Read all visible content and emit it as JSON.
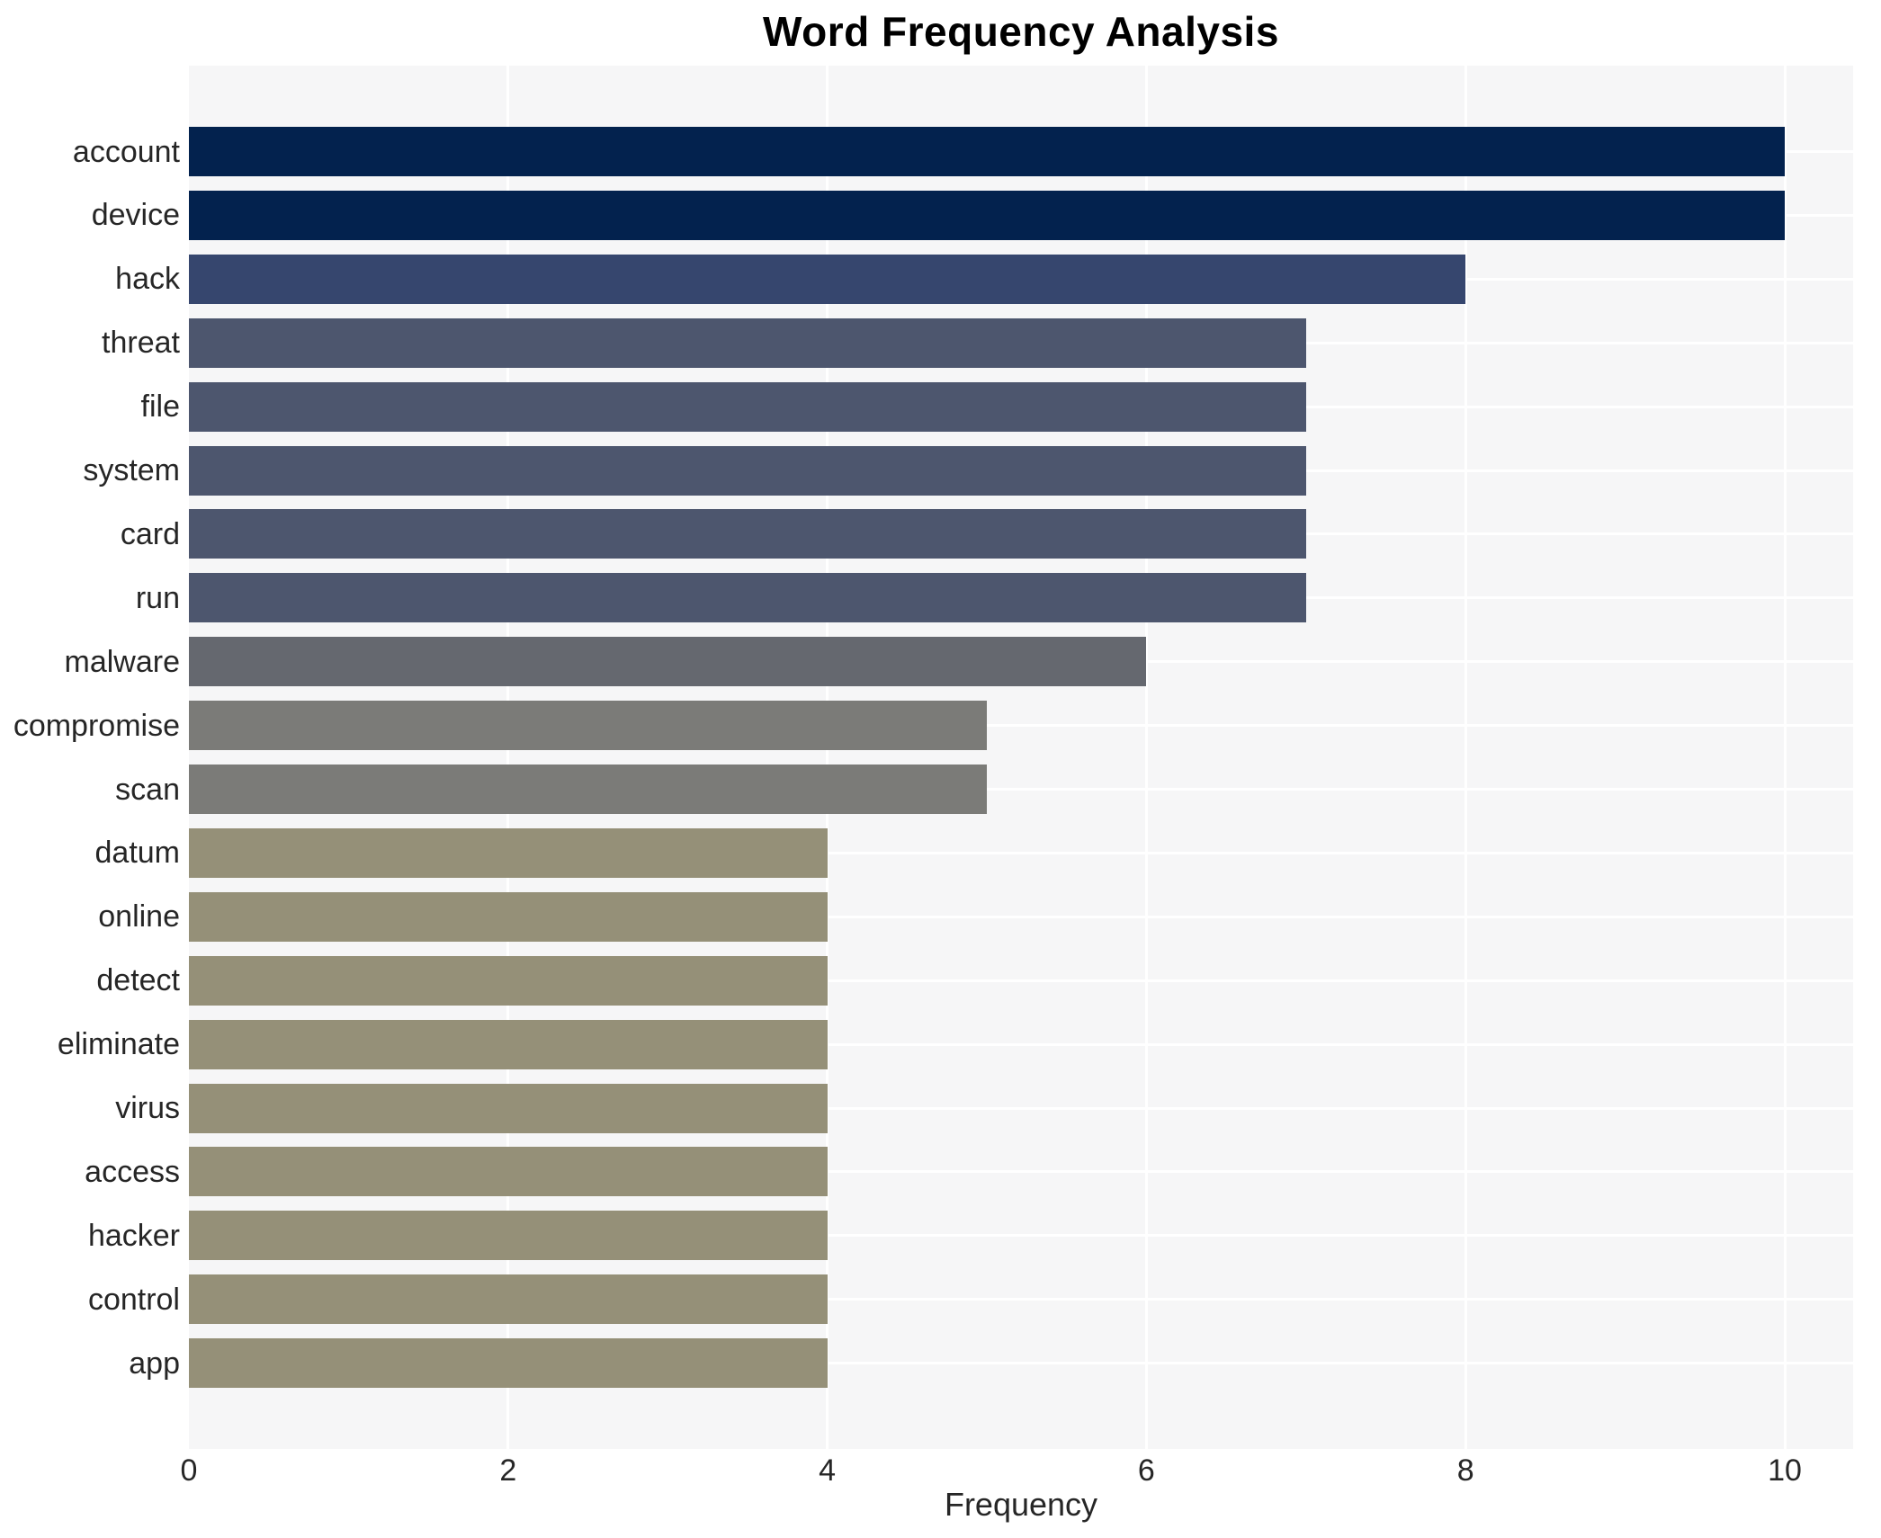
{
  "chart_data": {
    "type": "bar",
    "orientation": "horizontal",
    "title": "Word Frequency Analysis",
    "xlabel": "Frequency",
    "ylabel": "",
    "categories": [
      "account",
      "device",
      "hack",
      "threat",
      "file",
      "system",
      "card",
      "run",
      "malware",
      "compromise",
      "scan",
      "datum",
      "online",
      "detect",
      "eliminate",
      "virus",
      "access",
      "hacker",
      "control",
      "app"
    ],
    "values": [
      10,
      10,
      8,
      7,
      7,
      7,
      7,
      7,
      6,
      5,
      5,
      4,
      4,
      4,
      4,
      4,
      4,
      4,
      4,
      4
    ],
    "bar_colors": [
      "#03224e",
      "#03224e",
      "#36466e",
      "#4d566e",
      "#4d566e",
      "#4d566e",
      "#4d566e",
      "#4d566e",
      "#65686f",
      "#7b7b78",
      "#7b7b78",
      "#959078",
      "#959078",
      "#959078",
      "#959078",
      "#959078",
      "#959078",
      "#959078",
      "#959078",
      "#959078"
    ],
    "xticks": [
      0,
      2,
      4,
      6,
      8,
      10
    ],
    "xlim": [
      0,
      10.43
    ],
    "grid": true,
    "legend": false,
    "plot_background": "#f6f6f7",
    "grid_color": "#ffffff",
    "text_color": "#262626"
  }
}
